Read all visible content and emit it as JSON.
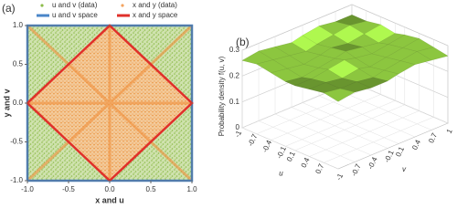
{
  "chart_data": [
    {
      "type": "scatter",
      "panel": "(a)",
      "xlabel": "x and u",
      "ylabel": "y and v",
      "xlim": [
        -1,
        1
      ],
      "ylim": [
        -1,
        1
      ],
      "xticks": [
        {
          "value": -1,
          "label": "-1.0"
        },
        {
          "value": -0.5,
          "label": "-0.5"
        },
        {
          "value": 0,
          "label": "0.0"
        },
        {
          "value": 0.5,
          "label": "0.5"
        },
        {
          "value": 1,
          "label": "1.0"
        }
      ],
      "yticks": [
        {
          "value": -1,
          "label": "-1.0"
        },
        {
          "value": -0.5,
          "label": "-0.5"
        },
        {
          "value": 0,
          "label": "0.0"
        },
        {
          "value": 0.5,
          "label": "0.5"
        },
        {
          "value": 1,
          "label": "1.0"
        }
      ],
      "series": [
        {
          "name": "u and v (data)",
          "color": "#8dbb4a",
          "kind": "points"
        },
        {
          "name": "x and y (data)",
          "color": "#f4a460",
          "kind": "points"
        },
        {
          "name": "u and v space",
          "color": "#4a86c8",
          "kind": "line",
          "x": [
            -1,
            1,
            1,
            -1,
            -1
          ],
          "y": [
            -1,
            -1,
            1,
            1,
            -1
          ]
        },
        {
          "name": "x and y space",
          "color": "#e0302a",
          "kind": "line",
          "x": [
            0,
            1,
            0,
            -1,
            0
          ],
          "y": [
            -1,
            0,
            1,
            0,
            -1
          ]
        }
      ]
    },
    {
      "type": "surface",
      "panel": "(b)",
      "xlabel": "u",
      "ylabel": "v",
      "zlabel": "Probability density  f(u, v)",
      "xlim": [
        -1,
        1
      ],
      "ylim": [
        -1,
        1
      ],
      "zlim": [
        0,
        0.3
      ],
      "xticks": [
        -1,
        -0.7,
        -0.4,
        -0.1,
        0.1,
        0.4,
        0.7
      ],
      "yticks": [
        -1,
        -0.7,
        -0.4,
        -0.1,
        0.1,
        0.4,
        0.7,
        1
      ],
      "zticks": [
        0,
        0.1,
        0.2,
        0.3
      ],
      "color": "#8cc63f",
      "u": [
        -1,
        -0.7,
        -0.4,
        -0.1,
        0.1,
        0.4,
        0.7,
        1
      ],
      "v": [
        -1,
        -0.7,
        -0.4,
        -0.1,
        0.1,
        0.4,
        0.7,
        1
      ],
      "z": [
        [
          0.26,
          0.27,
          0.26,
          0.25,
          0.26,
          0.27,
          0.26,
          0.26
        ],
        [
          0.27,
          0.26,
          0.25,
          0.24,
          0.25,
          0.26,
          0.27,
          0.26
        ],
        [
          0.26,
          0.25,
          0.24,
          0.25,
          0.26,
          0.25,
          0.26,
          0.27
        ],
        [
          0.25,
          0.24,
          0.25,
          0.26,
          0.27,
          0.26,
          0.25,
          0.26
        ],
        [
          0.25,
          0.25,
          0.26,
          0.27,
          0.26,
          0.25,
          0.26,
          0.27
        ],
        [
          0.26,
          0.26,
          0.25,
          0.26,
          0.25,
          0.26,
          0.27,
          0.28
        ],
        [
          0.27,
          0.26,
          0.26,
          0.25,
          0.26,
          0.27,
          0.28,
          0.27
        ],
        [
          0.26,
          0.27,
          0.26,
          0.26,
          0.27,
          0.28,
          0.27,
          0.26
        ]
      ]
    }
  ]
}
